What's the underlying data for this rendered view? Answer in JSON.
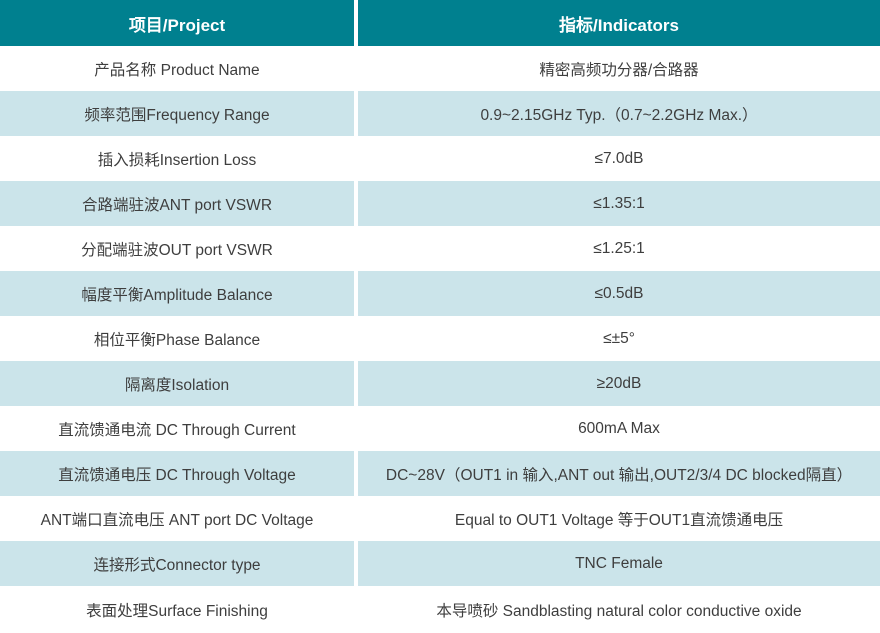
{
  "colors": {
    "header_bg": "#00808f",
    "header_text": "#ffffff",
    "row_bg": "#ffffff",
    "row_alt_bg": "#cbe4ea",
    "body_text": "#3e3e3e",
    "divider": "#ffffff"
  },
  "table": {
    "headers": [
      {
        "label": "项目/Project"
      },
      {
        "label": "指标/Indicators"
      }
    ],
    "rows": [
      {
        "project": "产品名称 Product Name",
        "indicator": "精密高频功分器/合路器"
      },
      {
        "project": "频率范围Frequency Range",
        "indicator": "0.9~2.15GHz Typ.（0.7~2.2GHz Max.）"
      },
      {
        "project": "插入损耗Insertion Loss",
        "indicator": "≤7.0dB"
      },
      {
        "project": "合路端驻波ANT port VSWR",
        "indicator": "≤1.35:1"
      },
      {
        "project": "分配端驻波OUT port VSWR",
        "indicator": "≤1.25:1"
      },
      {
        "project": "幅度平衡Amplitude Balance",
        "indicator": "≤0.5dB"
      },
      {
        "project": "相位平衡Phase Balance",
        "indicator": "≤±5°"
      },
      {
        "project": "隔离度Isolation",
        "indicator": "≥20dB"
      },
      {
        "project": "直流馈通电流 DC Through Current",
        "indicator": "600mA Max"
      },
      {
        "project": "直流馈通电压 DC Through Voltage",
        "indicator": "DC~28V（OUT1 in 输入,ANT out 输出,OUT2/3/4 DC blocked隔直）"
      },
      {
        "project": "ANT端口直流电压 ANT port DC Voltage",
        "indicator": "Equal to OUT1 Voltage 等于OUT1直流馈通电压"
      },
      {
        "project": "连接形式Connector type",
        "indicator": "TNC Female"
      },
      {
        "project": "表面处理Surface Finishing",
        "indicator": "本导喷砂 Sandblasting natural color conductive oxide"
      }
    ]
  }
}
